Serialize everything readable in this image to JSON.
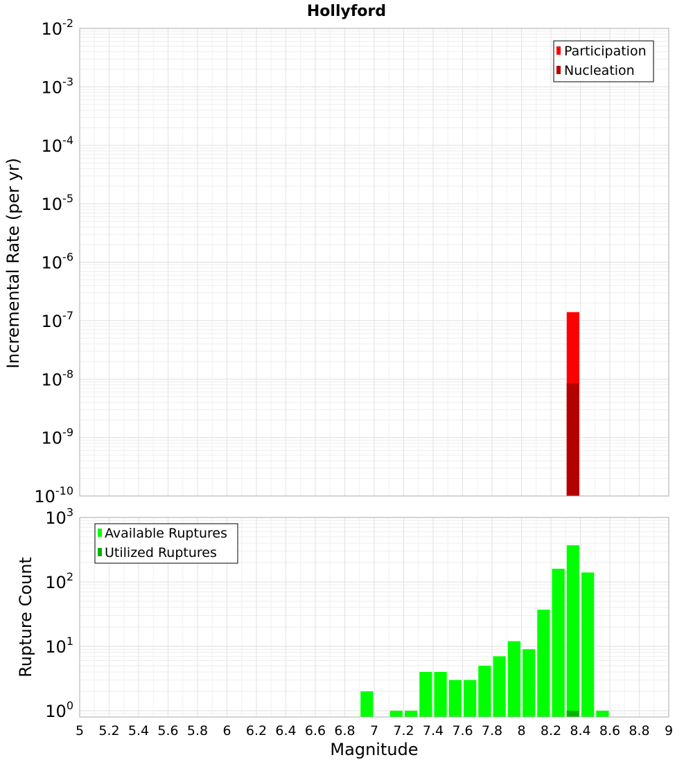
{
  "chart_data": {
    "type": "bar",
    "title": "Hollyford",
    "xlabel": "Magnitude",
    "xlim": [
      5,
      9
    ],
    "x_ticks": [
      "5",
      "5.2",
      "5.4",
      "5.6",
      "5.8",
      "6",
      "6.2",
      "6.4",
      "6.6",
      "6.8",
      "7",
      "7.2",
      "7.4",
      "7.6",
      "7.8",
      "8",
      "8.2",
      "8.4",
      "8.6",
      "8.8",
      "9"
    ],
    "grid": true,
    "panels": [
      {
        "ylabel": "Incremental Rate (per yr)",
        "yscale": "log",
        "ylim": [
          1e-10,
          0.01
        ],
        "y_ticks": [
          {
            "base": "10",
            "exp": "-10",
            "value": 1e-10
          },
          {
            "base": "10",
            "exp": "-9",
            "value": 1e-09
          },
          {
            "base": "10",
            "exp": "-8",
            "value": 1e-08
          },
          {
            "base": "10",
            "exp": "-7",
            "value": 1e-07
          },
          {
            "base": "10",
            "exp": "-6",
            "value": 1e-06
          },
          {
            "base": "10",
            "exp": "-5",
            "value": 1e-05
          },
          {
            "base": "10",
            "exp": "-4",
            "value": 0.0001
          },
          {
            "base": "10",
            "exp": "-3",
            "value": 0.001
          },
          {
            "base": "10",
            "exp": "-2",
            "value": 0.01
          }
        ],
        "legend_position": "top-right",
        "series": [
          {
            "name": "Participation",
            "color": "#ff0000",
            "x": [
              8.35
            ],
            "values": [
              1.4e-07
            ]
          },
          {
            "name": "Nucleation",
            "color": "#b40000",
            "x": [
              8.35
            ],
            "values": [
              8.5e-09
            ]
          }
        ]
      },
      {
        "ylabel": "Rupture Count",
        "yscale": "log",
        "ylim": [
          0.8,
          1000
        ],
        "y_ticks": [
          {
            "base": "10",
            "exp": "0",
            "value": 1
          },
          {
            "base": "10",
            "exp": "1",
            "value": 10
          },
          {
            "base": "10",
            "exp": "2",
            "value": 100
          },
          {
            "base": "10",
            "exp": "3",
            "value": 1000
          }
        ],
        "legend_position": "top-left",
        "series": [
          {
            "name": "Available Ruptures",
            "color": "#00ff00",
            "x": [
              6.95,
              7.15,
              7.25,
              7.35,
              7.45,
              7.55,
              7.65,
              7.75,
              7.85,
              7.95,
              8.05,
              8.15,
              8.25,
              8.35,
              8.45,
              8.55
            ],
            "values": [
              2,
              1,
              1,
              4,
              4,
              3,
              3,
              5,
              7,
              12,
              9,
              37,
              160,
              370,
              140,
              1
            ]
          },
          {
            "name": "Utilized Ruptures",
            "color": "#00b400",
            "x": [
              8.35
            ],
            "values": [
              1
            ]
          }
        ]
      }
    ]
  }
}
